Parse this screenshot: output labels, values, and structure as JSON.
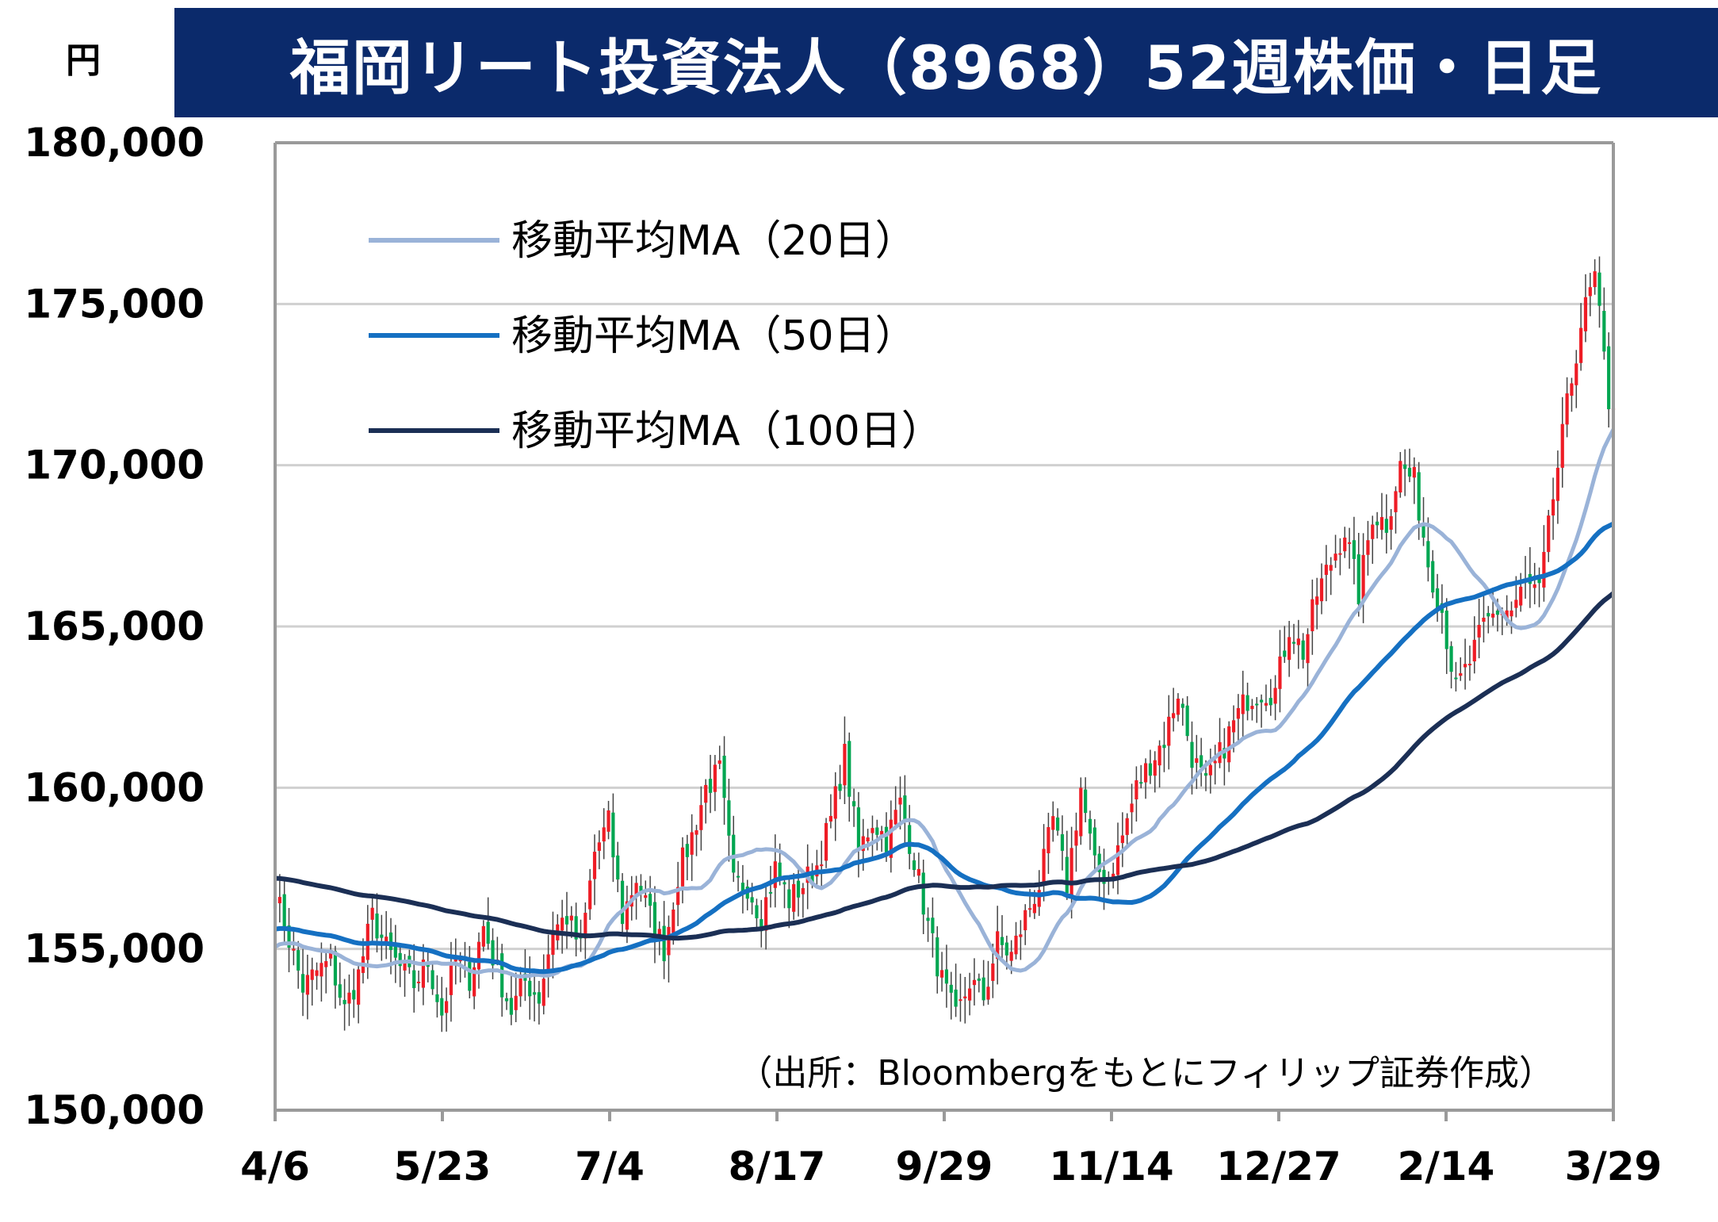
{
  "header": {
    "unit_label": "円",
    "title": "福岡リート投資法人（8968）52週株価・日足"
  },
  "source_note": "（出所：Bloombergをもとにフィリップ証券作成）",
  "colors": {
    "title_bg": "#0b2a6b",
    "up_candle": "#ee1c25",
    "down_candle": "#00a651",
    "ma20": "#9ab3d8",
    "ma50": "#1570c2",
    "ma100": "#1b2f55",
    "grid": "#d0d0d0",
    "axis": "#9a9a9a"
  },
  "chart_data": {
    "type": "candlestick",
    "y_axis": {
      "min": 150000,
      "max": 180000,
      "ticks": [
        "150,000",
        "155,000",
        "160,000",
        "165,000",
        "170,000",
        "175,000",
        "180,000"
      ]
    },
    "x_axis": {
      "ticks": [
        "4/6",
        "5/23",
        "7/4",
        "8/17",
        "9/29",
        "11/14",
        "12/27",
        "2/14",
        "3/29"
      ]
    },
    "grid": "horizontal",
    "legend": [
      {
        "name": "移動平均MA（20日）",
        "color_key": "ma20"
      },
      {
        "name": "移動平均MA（50日）",
        "color_key": "ma50"
      },
      {
        "name": "移動平均MA（100日）",
        "color_key": "ma100"
      }
    ],
    "legend_position": "top-left",
    "close_path_anchors": [
      [
        0,
        156700
      ],
      [
        3,
        155300
      ],
      [
        6,
        153800
      ],
      [
        9,
        154300
      ],
      [
        12,
        154600
      ],
      [
        15,
        153100
      ],
      [
        18,
        154200
      ],
      [
        21,
        156000
      ],
      [
        24,
        155000
      ],
      [
        27,
        154400
      ],
      [
        30,
        153900
      ],
      [
        33,
        154600
      ],
      [
        36,
        153000
      ],
      [
        39,
        154700
      ],
      [
        42,
        154100
      ],
      [
        45,
        155700
      ],
      [
        48,
        154300
      ],
      [
        51,
        153100
      ],
      [
        54,
        154000
      ],
      [
        57,
        153500
      ],
      [
        60,
        155600
      ],
      [
        63,
        156000
      ],
      [
        66,
        155000
      ],
      [
        69,
        158000
      ],
      [
        72,
        158900
      ],
      [
        75,
        156000
      ],
      [
        78,
        157200
      ],
      [
        81,
        156000
      ],
      [
        84,
        155000
      ],
      [
        87,
        157300
      ],
      [
        90,
        158500
      ],
      [
        93,
        160000
      ],
      [
        96,
        160500
      ],
      [
        99,
        157000
      ],
      [
        102,
        157000
      ],
      [
        105,
        156000
      ],
      [
        108,
        157500
      ],
      [
        111,
        156500
      ],
      [
        114,
        157000
      ],
      [
        117,
        157600
      ],
      [
        120,
        159000
      ],
      [
        123,
        161000
      ],
      [
        126,
        158000
      ],
      [
        129,
        159000
      ],
      [
        132,
        158400
      ],
      [
        135,
        159500
      ],
      [
        138,
        157800
      ],
      [
        141,
        155700
      ],
      [
        144,
        154000
      ],
      [
        147,
        152800
      ],
      [
        150,
        154000
      ],
      [
        153,
        153500
      ],
      [
        156,
        155200
      ],
      [
        159,
        154800
      ],
      [
        162,
        156000
      ],
      [
        165,
        157000
      ],
      [
        168,
        159000
      ],
      [
        171,
        157000
      ],
      [
        174,
        160000
      ],
      [
        177,
        157500
      ],
      [
        180,
        157200
      ],
      [
        183,
        158500
      ],
      [
        186,
        160000
      ],
      [
        189,
        160800
      ],
      [
        192,
        161500
      ],
      [
        195,
        163000
      ],
      [
        198,
        161000
      ],
      [
        201,
        160000
      ],
      [
        204,
        161000
      ],
      [
        207,
        162000
      ],
      [
        210,
        162800
      ],
      [
        213,
        163000
      ],
      [
        216,
        163000
      ],
      [
        219,
        165000
      ],
      [
        222,
        164200
      ],
      [
        225,
        166000
      ],
      [
        228,
        167000
      ],
      [
        231,
        168000
      ],
      [
        234,
        166000
      ],
      [
        237,
        168500
      ],
      [
        240,
        168200
      ],
      [
        243,
        170000
      ],
      [
        246,
        169500
      ],
      [
        249,
        167000
      ],
      [
        252,
        165500
      ],
      [
        255,
        163000
      ],
      [
        258,
        163900
      ],
      [
        261,
        165000
      ],
      [
        264,
        165500
      ],
      [
        267,
        165500
      ],
      [
        270,
        166300
      ],
      [
        273,
        166000
      ],
      [
        276,
        169000
      ],
      [
        279,
        171800
      ],
      [
        282,
        174400
      ],
      [
        285,
        175800
      ],
      [
        288,
        172000
      ]
    ],
    "candles_count": 290
  }
}
